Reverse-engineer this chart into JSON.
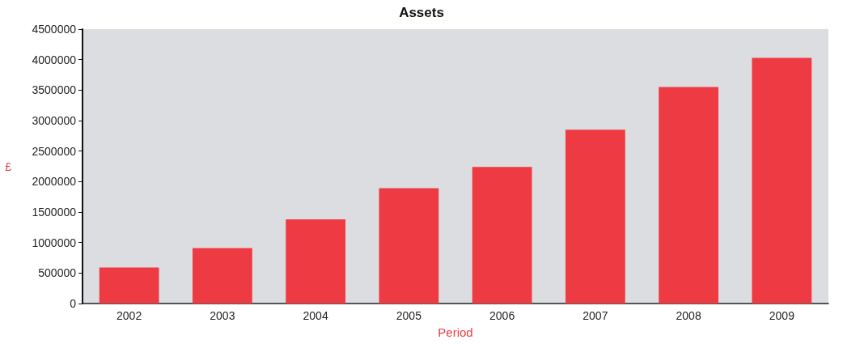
{
  "chart_data": {
    "type": "bar",
    "title": "Assets",
    "xlabel": "Period",
    "ylabel": "£",
    "categories": [
      "2002",
      "2003",
      "2004",
      "2005",
      "2006",
      "2007",
      "2008",
      "2009"
    ],
    "values": [
      590000,
      910000,
      1380000,
      1890000,
      2240000,
      2850000,
      3550000,
      4030000
    ],
    "color": "#ee3a43",
    "ylim": [
      0,
      4500000
    ],
    "yticks": [
      0,
      500000,
      1000000,
      1500000,
      2000000,
      2500000,
      3000000,
      3500000,
      4000000,
      4500000
    ],
    "grid": false
  }
}
